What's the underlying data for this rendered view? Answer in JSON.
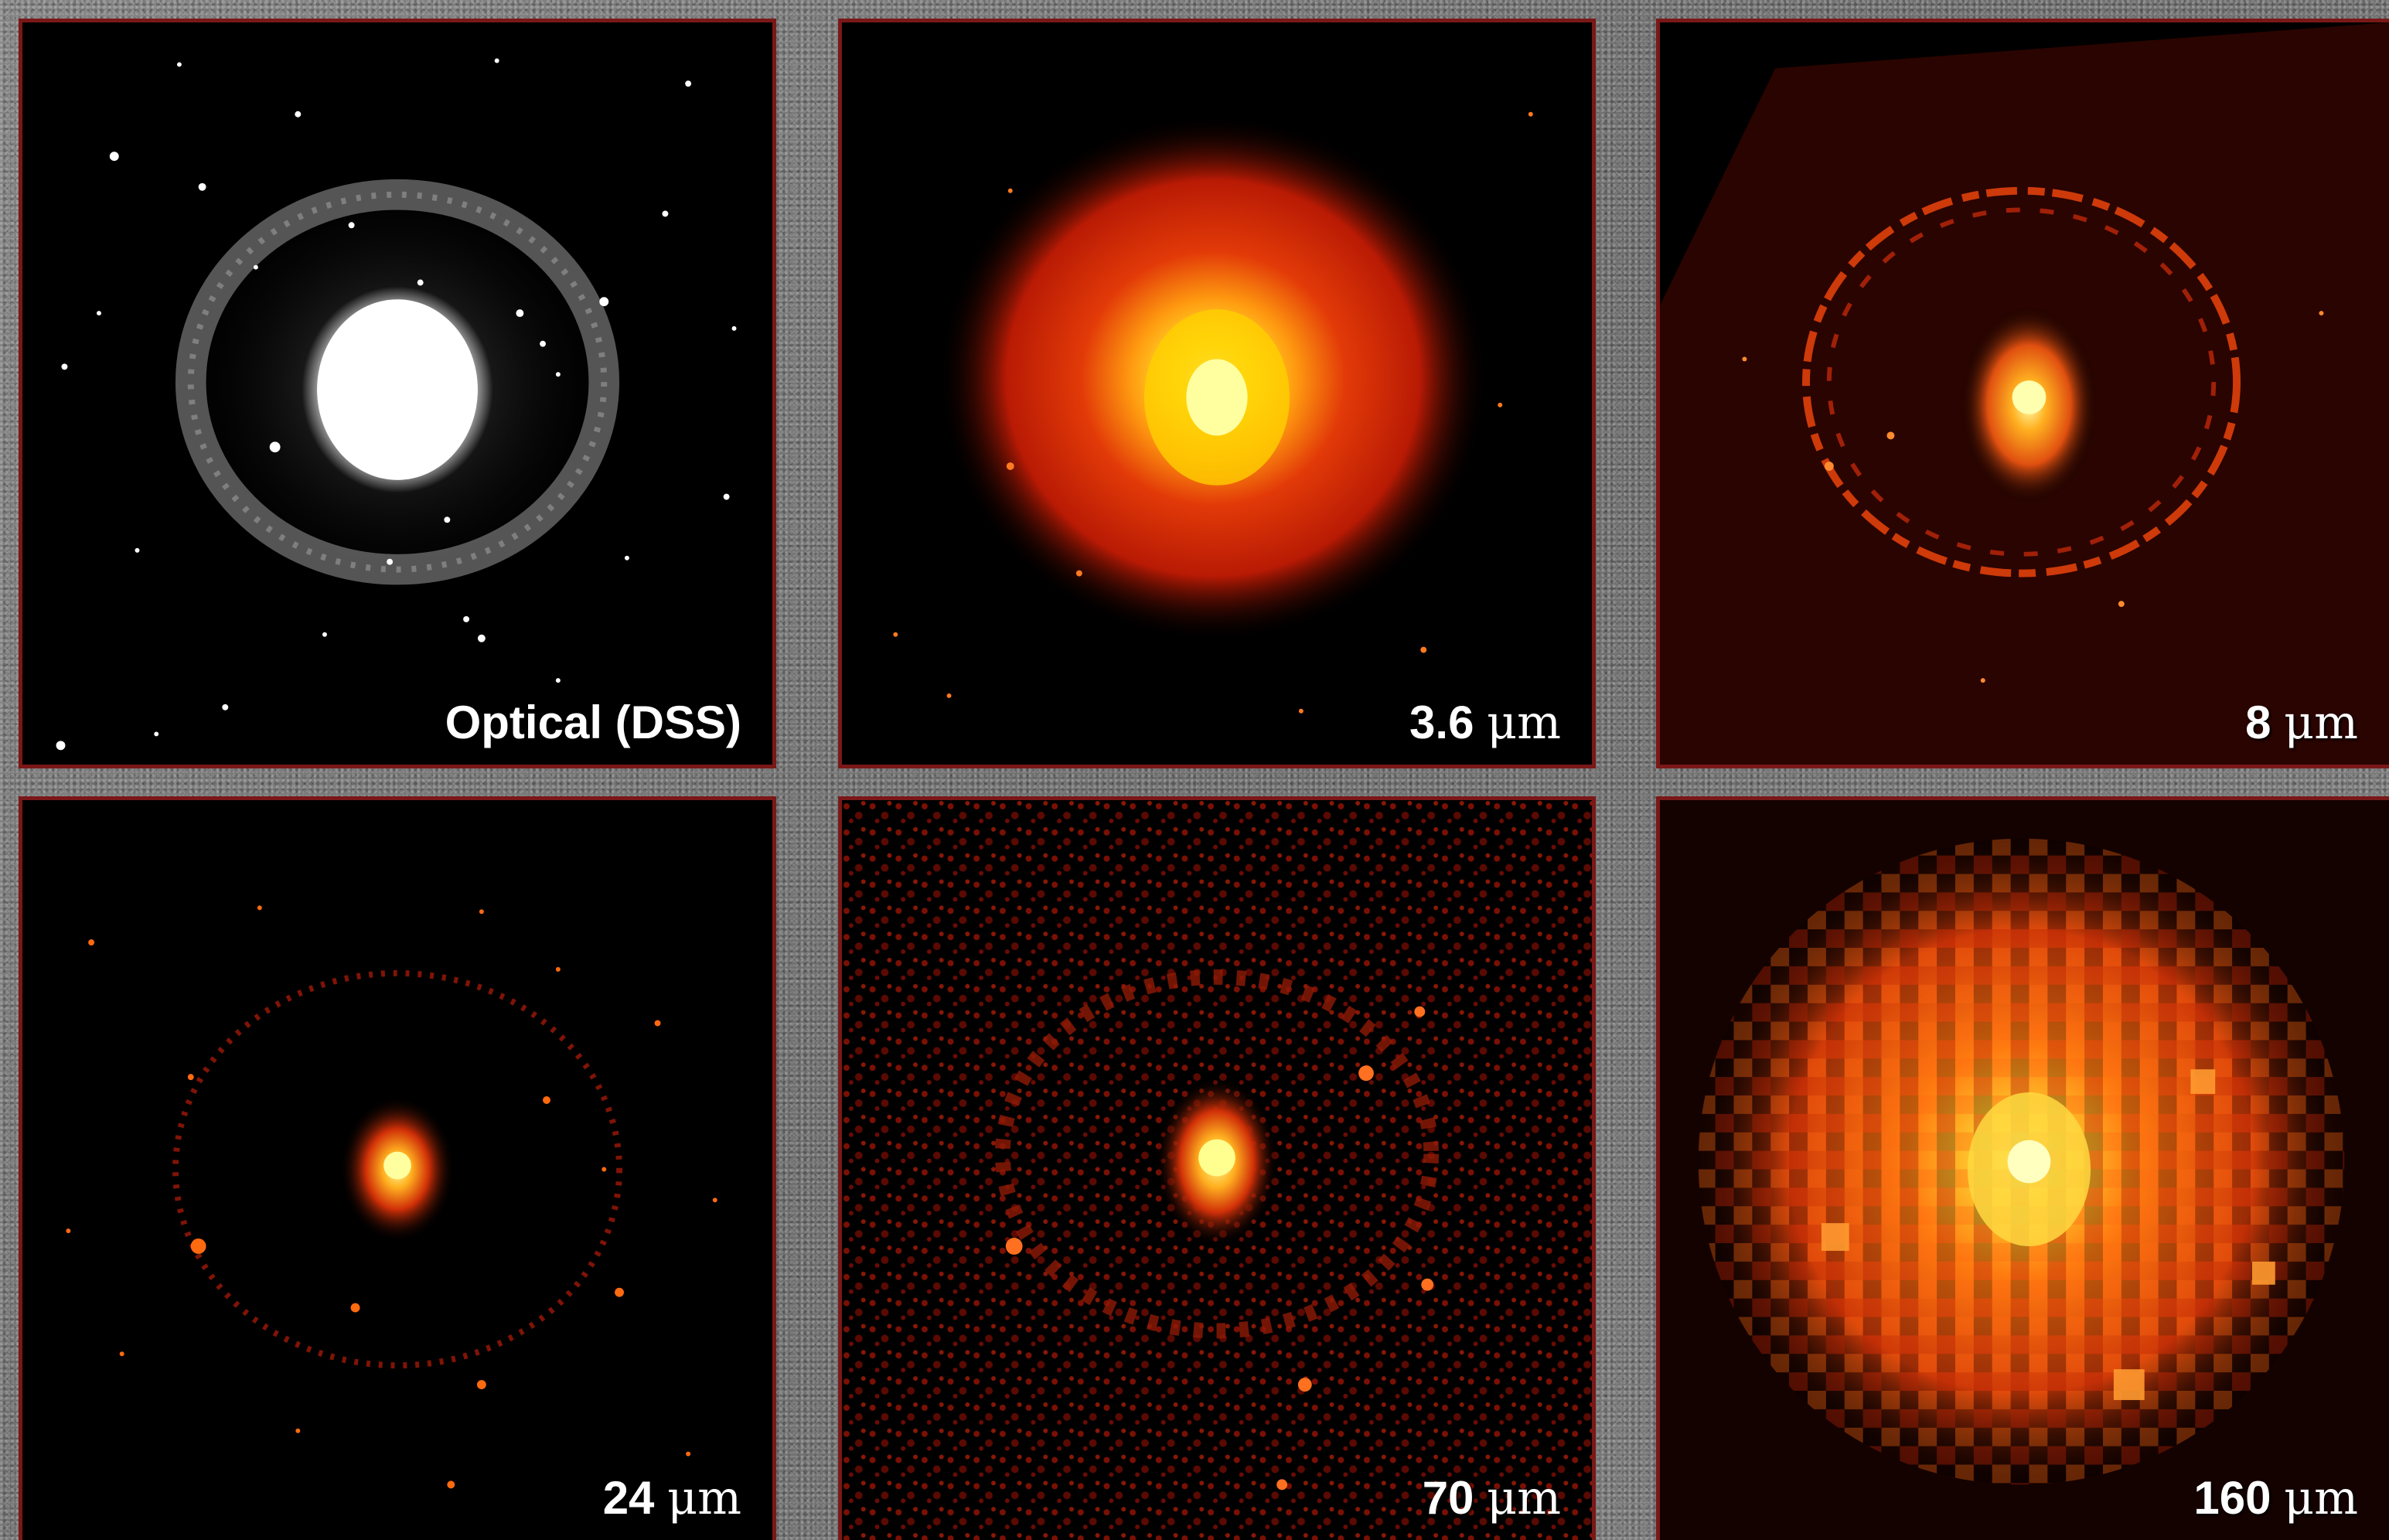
{
  "panels": [
    {
      "id": "optical",
      "label": "Optical (DSS)",
      "unit": ""
    },
    {
      "id": "3.6",
      "label": "3.6 ",
      "unit": "μm"
    },
    {
      "id": "8",
      "label": "8 ",
      "unit": "μm"
    },
    {
      "id": "24",
      "label": "24 ",
      "unit": "μm"
    },
    {
      "id": "70",
      "label": "70 ",
      "unit": "μm"
    },
    {
      "id": "160",
      "label": "160 ",
      "unit": "μm"
    }
  ],
  "colors": {
    "frame_border": "#7a1818",
    "background": "#7a7a7a",
    "heat_core": "#ffff80",
    "heat_mid": "#ff6a00",
    "heat_outer": "#a01000"
  }
}
